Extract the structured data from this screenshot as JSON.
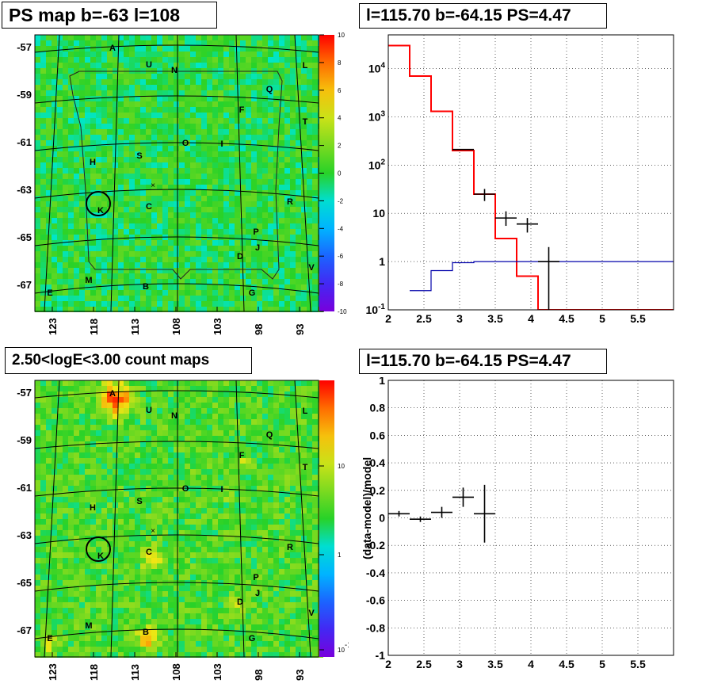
{
  "panels": {
    "ps_map": {
      "title": "PS map b=-63 l=108",
      "x_ticks": [
        "123",
        "118",
        "113",
        "108",
        "103",
        "98",
        "93"
      ],
      "y_ticks": [
        "-57",
        "-59",
        "-61",
        "-63",
        "-65",
        "-67"
      ],
      "colorbar": {
        "ticks": [
          "10",
          "8",
          "6",
          "4",
          "2",
          "0",
          "-2",
          "-4",
          "-6",
          "-8",
          "-10"
        ],
        "range": [
          -10,
          10
        ]
      },
      "sources": [
        "A",
        "U",
        "N",
        "L",
        "Q",
        "F",
        "T",
        "O",
        "I",
        "H",
        "S",
        "K",
        "C",
        "R",
        "P",
        "J",
        "D",
        "V",
        "M",
        "B",
        "G",
        "E"
      ],
      "marker": "×"
    },
    "spectrum": {
      "title": "l=115.70 b=-64.15 PS=4.47",
      "x_ticks": [
        "2",
        "2.5",
        "3",
        "3.5",
        "4",
        "4.5",
        "5",
        "5.5"
      ],
      "y_ticks": [
        "10^4",
        "10^3",
        "10^2",
        "10",
        "1",
        "10^-1"
      ]
    },
    "count_map": {
      "title": "2.50<logE<3.00 count maps",
      "x_ticks": [
        "123",
        "118",
        "113",
        "108",
        "103",
        "98",
        "93"
      ],
      "y_ticks": [
        "-57",
        "-59",
        "-61",
        "-63",
        "-65",
        "-67"
      ],
      "colorbar": {
        "ticks": [
          "10",
          "1",
          "10^-1"
        ],
        "scale": "log"
      },
      "sources": [
        "A",
        "U",
        "N",
        "L",
        "Q",
        "F",
        "T",
        "O",
        "I",
        "H",
        "S",
        "K",
        "C",
        "R",
        "P",
        "J",
        "D",
        "V",
        "M",
        "B",
        "G",
        "E"
      ],
      "marker": "×"
    },
    "residual": {
      "title": "l=115.70 b=-64.15 PS=4.47",
      "ylabel": "(data-model)/model",
      "x_ticks": [
        "2",
        "2.5",
        "3",
        "3.5",
        "4",
        "4.5",
        "5",
        "5.5"
      ],
      "y_ticks": [
        "1",
        "0.8",
        "0.6",
        "0.4",
        "0.2",
        "0",
        "-0.2",
        "-0.4",
        "-0.6",
        "-0.8",
        "-1"
      ]
    }
  },
  "chart_data": [
    {
      "type": "heatmap",
      "title": "PS map b=-63 l=108",
      "xlim": [
        124,
        92
      ],
      "ylim": [
        -68,
        -56.5
      ],
      "color_range": [
        -10,
        10
      ]
    },
    {
      "type": "line",
      "title": "l=115.70 b=-64.15 PS=4.47",
      "xlim": [
        2,
        6
      ],
      "yscale": "log",
      "ylim": [
        0.1,
        50000
      ],
      "series": [
        {
          "color": "#ff0000",
          "style": "step",
          "bins": [
            [
              2.0,
              2.3,
              30000
            ],
            [
              2.3,
              2.6,
              7000
            ],
            [
              2.6,
              2.9,
              1300
            ],
            [
              2.9,
              3.2,
              200
            ],
            [
              3.2,
              3.5,
              25
            ],
            [
              3.5,
              3.8,
              3
            ],
            [
              3.8,
              4.1,
              0.5
            ],
            [
              4.1,
              4.4,
              0.1
            ],
            [
              4.4,
              6.0,
              0.1
            ]
          ]
        },
        {
          "color": "#0000aa",
          "style": "step",
          "bins": [
            [
              2.3,
              2.6,
              0.25
            ],
            [
              2.6,
              2.9,
              0.65
            ],
            [
              2.9,
              3.2,
              0.95
            ],
            [
              3.2,
              6.0,
              1.0
            ]
          ]
        },
        {
          "color": "#000000",
          "style": "errorbar",
          "points": [
            [
              3.05,
              210,
              0.15,
              null,
              null
            ],
            [
              3.35,
              25,
              0.15,
              18,
              32
            ],
            [
              3.65,
              8,
              0.15,
              5.5,
              11
            ],
            [
              3.95,
              6,
              0.15,
              4,
              8
            ],
            [
              4.25,
              1,
              0.15,
              0.1,
              2
            ]
          ]
        }
      ]
    },
    {
      "type": "heatmap",
      "title": "2.50<logE<3.00 count maps",
      "xlim": [
        124,
        92
      ],
      "ylim": [
        -68,
        -56.5
      ],
      "color_scale": "log"
    },
    {
      "type": "scatter",
      "title": "l=115.70 b=-64.15 PS=4.47",
      "ylabel": "(data-model)/model",
      "xlim": [
        2,
        6
      ],
      "ylim": [
        -1,
        1
      ],
      "series": [
        {
          "color": "#000000",
          "style": "errorbar",
          "points": [
            [
              2.15,
              0.03,
              0.15,
              0.02
            ],
            [
              2.45,
              -0.01,
              0.15,
              0.02
            ],
            [
              2.75,
              0.04,
              0.15,
              0.04
            ],
            [
              3.05,
              0.15,
              0.15,
              0.07
            ],
            [
              3.35,
              0.03,
              0.15,
              0.21
            ]
          ]
        }
      ]
    }
  ]
}
